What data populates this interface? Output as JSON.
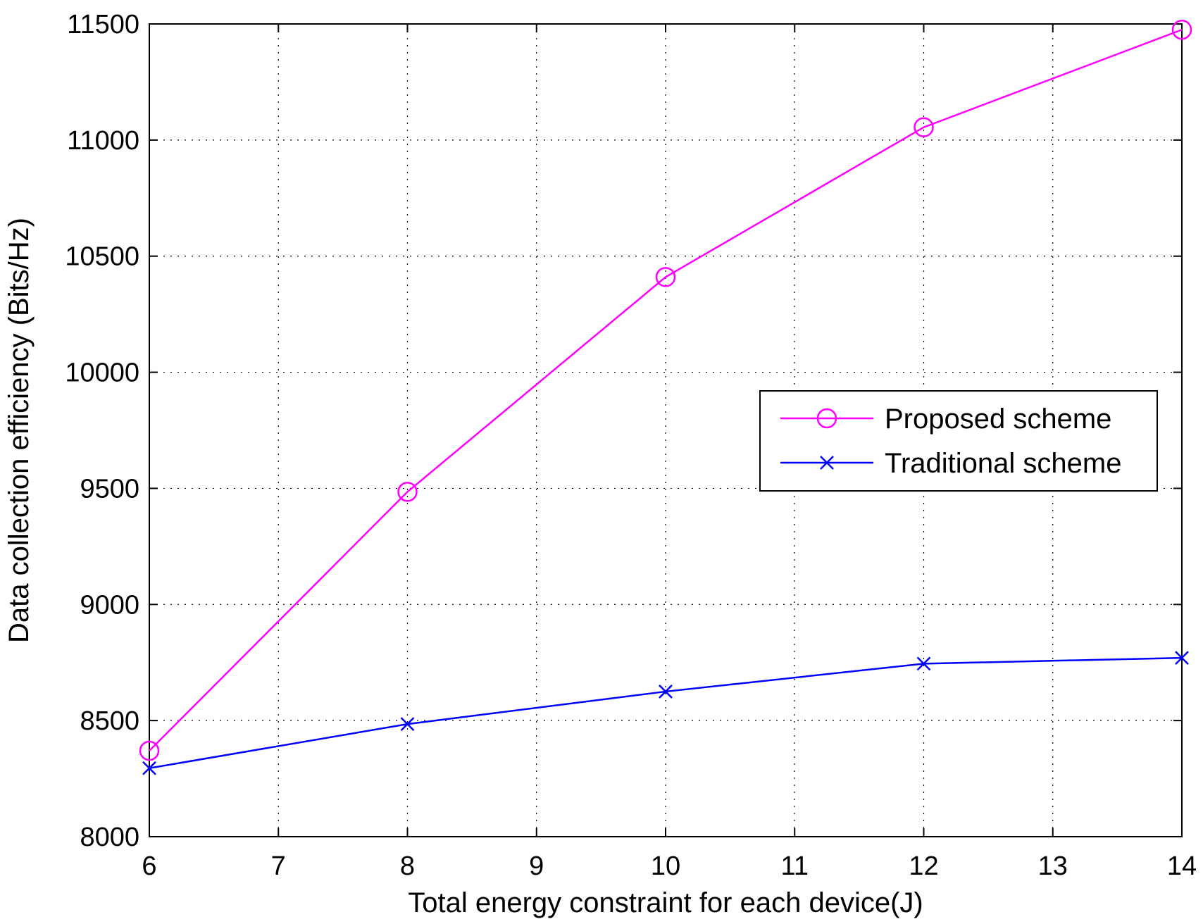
{
  "chart_data": {
    "type": "line",
    "title": "",
    "xlabel": "Total energy constraint for each device(J)",
    "ylabel": "Data collection efficiency (Bits/Hz)",
    "xlim": [
      6,
      14
    ],
    "ylim": [
      8000,
      11500
    ],
    "xticks": [
      6,
      7,
      8,
      9,
      10,
      11,
      12,
      13,
      14
    ],
    "yticks": [
      8000,
      8500,
      9000,
      9500,
      10000,
      10500,
      11000,
      11500
    ],
    "grid": true,
    "legend_position": "right-middle",
    "series": [
      {
        "name": "Proposed scheme",
        "color": "#ff00ff",
        "marker": "circle",
        "x": [
          6,
          8,
          10,
          12,
          14
        ],
        "values": [
          8370,
          9485,
          10410,
          11055,
          11475
        ]
      },
      {
        "name": "Traditional scheme",
        "color": "#0000ff",
        "marker": "x",
        "x": [
          6,
          8,
          10,
          12,
          14
        ],
        "values": [
          8295,
          8485,
          8625,
          8745,
          8770
        ]
      }
    ]
  }
}
